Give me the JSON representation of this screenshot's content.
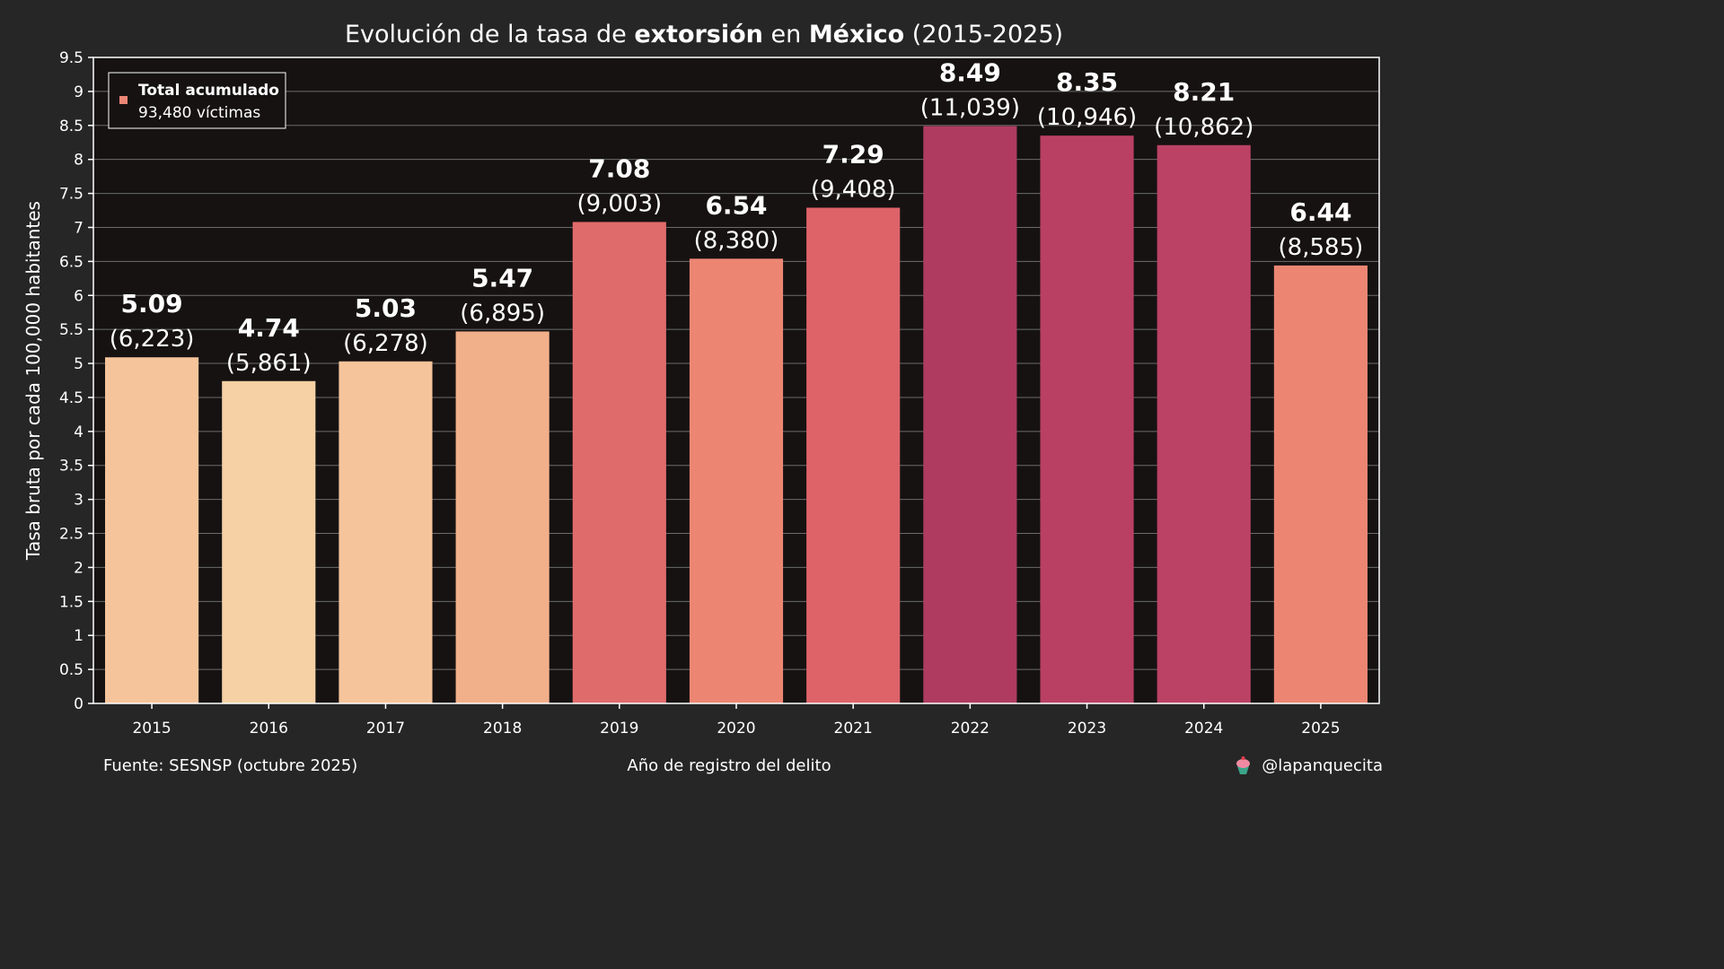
{
  "title": {
    "part1": "Evolución de la tasa de ",
    "bold1": "extorsión",
    "part2": " en ",
    "bold2": "México",
    "part3": " (2015-2025)"
  },
  "ylabel": "Tasa bruta por cada 100,000 habitantes",
  "xlabel": "Año de registro del delito",
  "source": "Fuente: SESNSP (octubre 2025)",
  "credit": "@lapanquecita",
  "credit_icon": "cupcake-icon",
  "legend": {
    "title": "Total acumulado",
    "value": "93,480 víctimas",
    "marker_color": "#eb8674"
  },
  "colors": {
    "background": "#262626",
    "plot_background": "#161212",
    "grid": "#6b6b6b"
  },
  "chart_data": {
    "type": "bar",
    "categories": [
      "2015",
      "2016",
      "2017",
      "2018",
      "2019",
      "2020",
      "2021",
      "2022",
      "2023",
      "2024",
      "2025"
    ],
    "values": [
      5.09,
      4.74,
      5.03,
      5.47,
      7.08,
      6.54,
      7.29,
      8.49,
      8.35,
      8.21,
      6.44
    ],
    "counts": [
      "(6,223)",
      "(5,861)",
      "(6,278)",
      "(6,895)",
      "(9,003)",
      "(8,380)",
      "(9,408)",
      "(11,039)",
      "(10,946)",
      "(10,862)",
      "(8,585)"
    ],
    "bar_colors": [
      "#f5c49b",
      "#f5d1a5",
      "#f5c49b",
      "#f2b08a",
      "#e06b6b",
      "#ec8673",
      "#dd6369",
      "#af3c60",
      "#b94063",
      "#bb4265",
      "#ec8673"
    ],
    "ylim": [
      0,
      9.5
    ],
    "yticks": [
      0,
      0.5,
      1,
      1.5,
      2,
      2.5,
      3,
      3.5,
      4,
      4.5,
      5,
      5.5,
      6,
      6.5,
      7,
      7.5,
      8,
      8.5,
      9,
      9.5
    ],
    "ytick_labels": [
      "0",
      "0.5",
      "1",
      "1.5",
      "2",
      "2.5",
      "3",
      "3.5",
      "4",
      "4.5",
      "5",
      "5.5",
      "6",
      "6.5",
      "7",
      "7.5",
      "8",
      "8.5",
      "9",
      "9.5"
    ],
    "grid": true,
    "legend_position": "top-left"
  }
}
